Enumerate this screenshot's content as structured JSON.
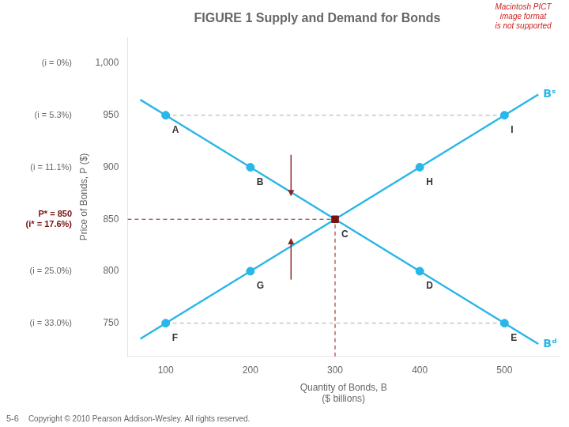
{
  "chart_data": {
    "type": "line",
    "title": "FIGURE 1 Supply and Demand for Bonds",
    "xlabel": [
      "Quantity of Bonds, B",
      "($ billions)"
    ],
    "ylabel": "Price of Bonds, P ($)",
    "xlim": [
      55,
      565
    ],
    "xticks": [
      100,
      200,
      300,
      400,
      500
    ],
    "ylim": [
      718,
      1025
    ],
    "yticks": [
      750,
      800,
      850,
      900,
      950,
      {
        "value": 1000,
        "label": "1,000"
      }
    ],
    "grid": false,
    "legend": false,
    "series": [
      {
        "name": "Bˢ",
        "color": "#29b6e8",
        "x": [
          70,
          100,
          200,
          300,
          400,
          500,
          540
        ],
        "values": [
          735,
          750,
          800,
          850,
          900,
          950,
          970
        ]
      },
      {
        "name": "Bᵈ",
        "color": "#29b6e8",
        "x": [
          70,
          100,
          200,
          300,
          400,
          500,
          540
        ],
        "values": [
          965,
          950,
          900,
          850,
          800,
          750,
          730
        ]
      }
    ],
    "points": [
      {
        "label": "A",
        "x": 100,
        "y": 950,
        "color": "#29b6e8",
        "marker": "circle"
      },
      {
        "label": "B",
        "x": 200,
        "y": 900,
        "color": "#29b6e8",
        "marker": "circle"
      },
      {
        "label": "D",
        "x": 400,
        "y": 800,
        "color": "#29b6e8",
        "marker": "circle"
      },
      {
        "label": "E",
        "x": 500,
        "y": 750,
        "color": "#29b6e8",
        "marker": "circle"
      },
      {
        "label": "F",
        "x": 100,
        "y": 750,
        "color": "#29b6e8",
        "marker": "circle"
      },
      {
        "label": "G",
        "x": 200,
        "y": 800,
        "color": "#29b6e8",
        "marker": "circle"
      },
      {
        "label": "H",
        "x": 400,
        "y": 900,
        "color": "#29b6e8",
        "marker": "circle"
      },
      {
        "label": "I",
        "x": 500,
        "y": 950,
        "color": "#29b6e8",
        "marker": "circle"
      },
      {
        "label": "C",
        "x": 300,
        "y": 850,
        "color": "#7a1010",
        "marker": "square"
      }
    ],
    "reference_lines": [
      {
        "x": [
          55,
          300
        ],
        "values": [
          850,
          850
        ],
        "color": "#8b1a1a",
        "line_style": "dashed"
      },
      {
        "x": [
          300,
          300
        ],
        "values": [
          718,
          850
        ],
        "color": "#8b1a1a",
        "line_style": "dashed"
      },
      {
        "x": [
          100,
          500
        ],
        "values": [
          950,
          950
        ],
        "color": "#aaaaaa",
        "line_style": "dashed"
      },
      {
        "x": [
          100,
          500
        ],
        "values": [
          750,
          750
        ],
        "color": "#aaaaaa",
        "line_style": "dashed"
      }
    ],
    "arrows": [
      {
        "x": 248,
        "from": 912,
        "to": 872,
        "color": "#8b2222"
      },
      {
        "x": 248,
        "from": 792,
        "to": 832,
        "color": "#8b2222"
      }
    ],
    "axis_notes": [
      {
        "text": "(i = 0%)",
        "y": 1000
      },
      {
        "text": "(i = 5.3%)",
        "y": 950
      },
      {
        "text": "(i = 11.1%)",
        "y": 900
      },
      {
        "text": "(i = 25.0%)",
        "y": 800
      },
      {
        "text": "(i = 33.0%)",
        "y": 750
      },
      {
        "text": "P* = 850",
        "y": 850,
        "color": "#7a1010"
      },
      {
        "text": "(i* = 17.6%)",
        "y": 850,
        "color": "#7a1010"
      }
    ],
    "watermark": {
      "lines": [
        "Macintosh PICT",
        "image format",
        "is not supported"
      ],
      "color": "#cc2222"
    },
    "footer": [
      "5-6",
      "Copyright © 2010 Pearson Addison-Wesley. All rights reserved."
    ]
  }
}
